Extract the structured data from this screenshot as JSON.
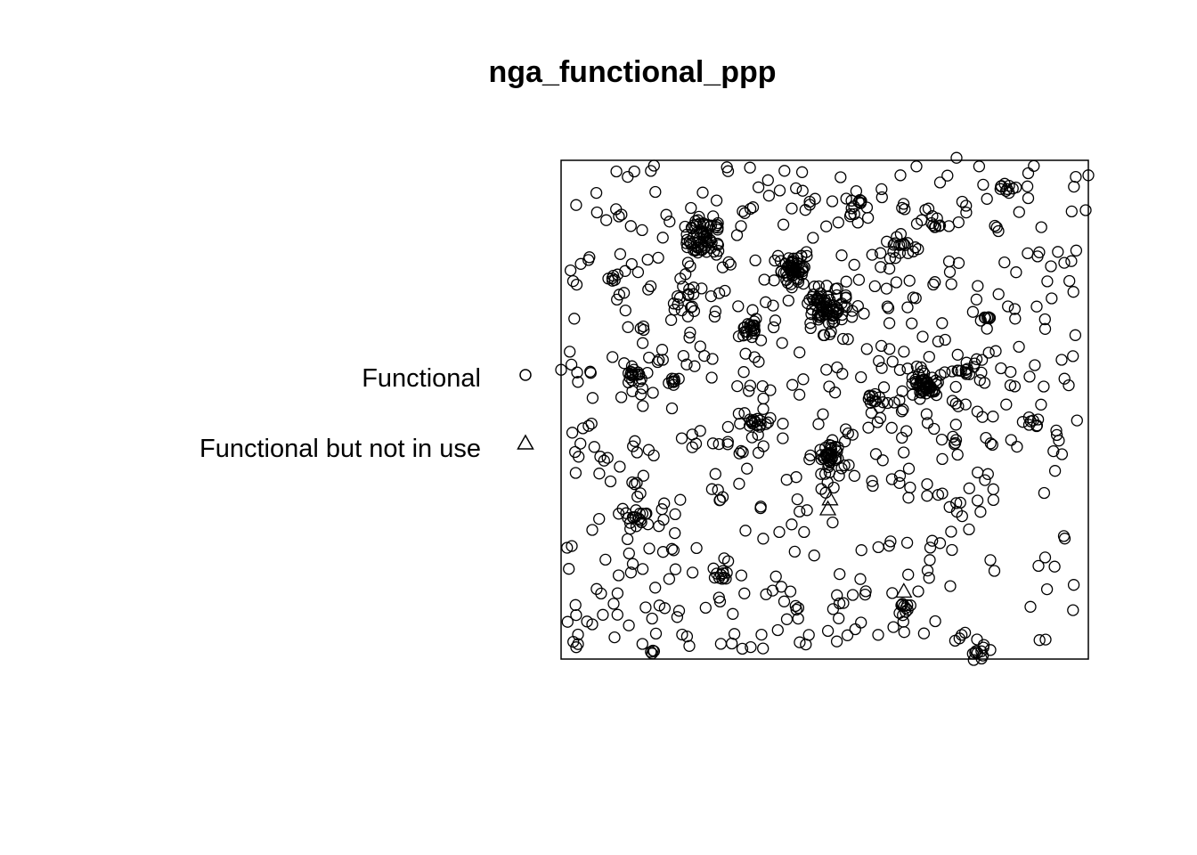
{
  "chart_data": {
    "type": "scatter",
    "title": "nga_functional_ppp",
    "grid": false,
    "legend_placement": "left",
    "legend": [
      {
        "label": "Functional",
        "marker": "circle"
      },
      {
        "label": "Functional but not in use",
        "marker": "triangle"
      }
    ],
    "seed": 20240611,
    "clusters": [
      {
        "x": 0.27,
        "y": 0.155,
        "n": 60,
        "s": 0.018
      },
      {
        "x": 0.44,
        "y": 0.22,
        "n": 50,
        "s": 0.015
      },
      {
        "x": 0.51,
        "y": 0.295,
        "n": 70,
        "s": 0.02
      },
      {
        "x": 0.69,
        "y": 0.45,
        "n": 45,
        "s": 0.012
      },
      {
        "x": 0.51,
        "y": 0.595,
        "n": 40,
        "s": 0.015
      },
      {
        "x": 0.36,
        "y": 0.335,
        "n": 20,
        "s": 0.01
      },
      {
        "x": 0.14,
        "y": 0.43,
        "n": 18,
        "s": 0.009
      },
      {
        "x": 0.14,
        "y": 0.715,
        "n": 15,
        "s": 0.01
      },
      {
        "x": 0.37,
        "y": 0.53,
        "n": 12,
        "s": 0.01
      },
      {
        "x": 0.64,
        "y": 0.172,
        "n": 15,
        "s": 0.012
      },
      {
        "x": 0.85,
        "y": 0.055,
        "n": 10,
        "s": 0.008
      },
      {
        "x": 0.56,
        "y": 0.085,
        "n": 12,
        "s": 0.012
      },
      {
        "x": 0.77,
        "y": 0.42,
        "n": 10,
        "s": 0.008
      },
      {
        "x": 0.79,
        "y": 0.99,
        "n": 10,
        "s": 0.008
      },
      {
        "x": 0.65,
        "y": 0.9,
        "n": 10,
        "s": 0.007
      },
      {
        "x": 0.3,
        "y": 0.83,
        "n": 8,
        "s": 0.006
      },
      {
        "x": 0.89,
        "y": 0.525,
        "n": 8,
        "s": 0.01
      },
      {
        "x": 0.1,
        "y": 0.235,
        "n": 6,
        "s": 0.006
      },
      {
        "x": 0.21,
        "y": 0.445,
        "n": 8,
        "s": 0.008
      },
      {
        "x": 0.7,
        "y": 0.12,
        "n": 12,
        "s": 0.015
      },
      {
        "x": 0.24,
        "y": 0.28,
        "n": 15,
        "s": 0.015
      },
      {
        "x": 0.6,
        "y": 0.48,
        "n": 12,
        "s": 0.014
      },
      {
        "x": 0.81,
        "y": 0.315,
        "n": 6,
        "s": 0.006
      },
      {
        "x": 0.17,
        "y": 0.985,
        "n": 4,
        "s": 0.003
      }
    ],
    "background_points": 650,
    "triangles": [
      {
        "x": 0.65,
        "y": 0.865
      },
      {
        "x": 0.506,
        "y": 0.7
      },
      {
        "x": 0.51,
        "y": 0.68
      }
    ]
  }
}
